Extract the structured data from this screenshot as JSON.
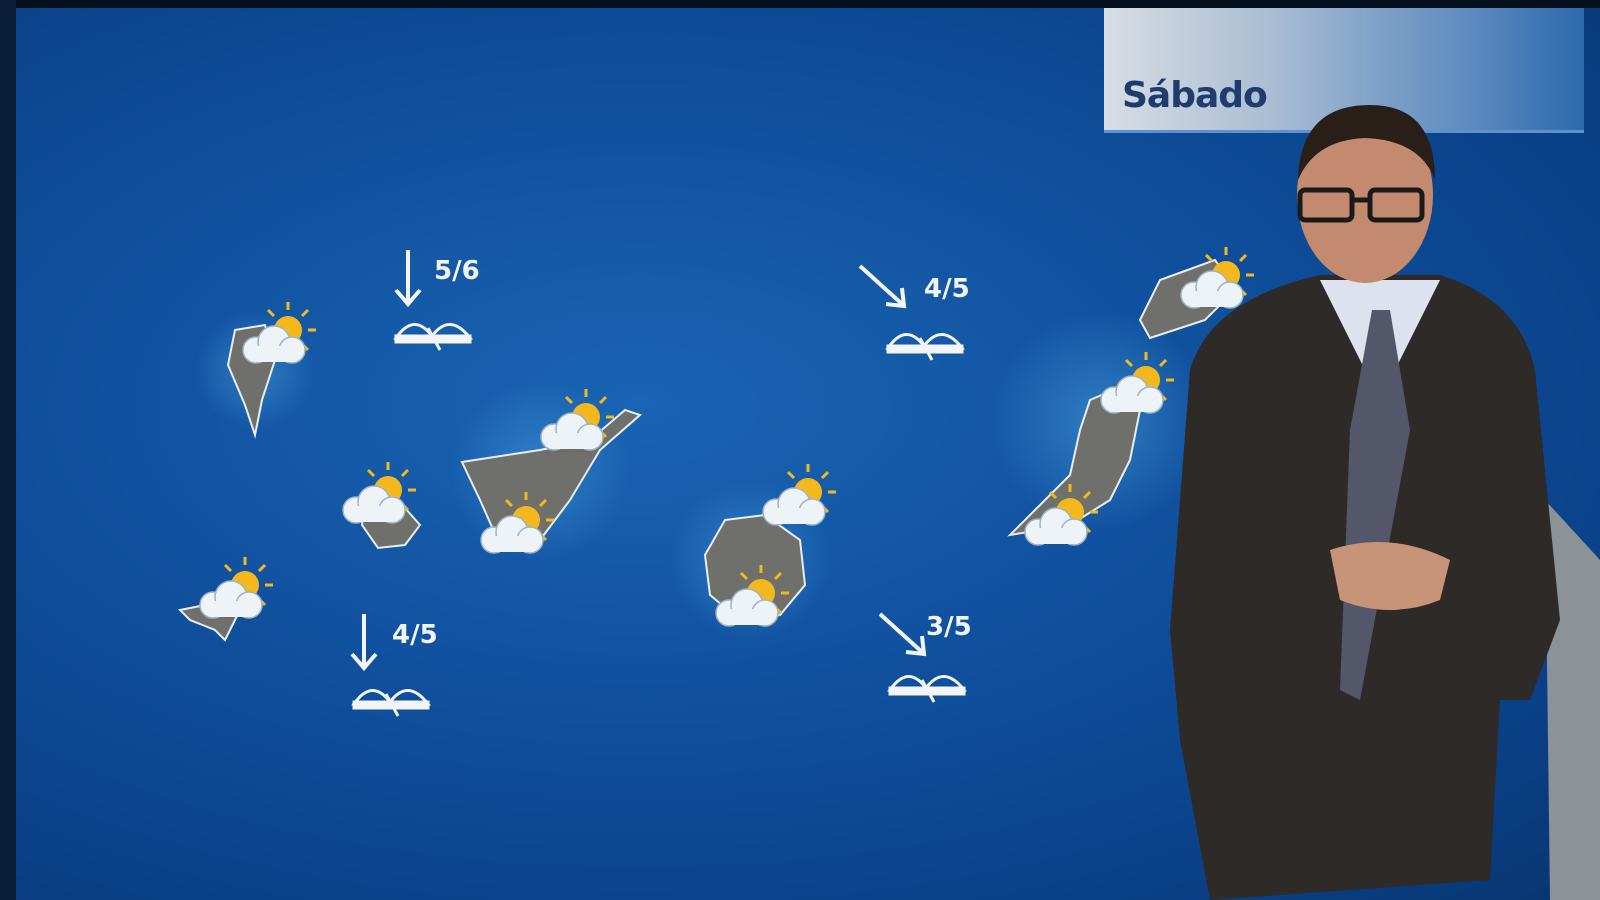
{
  "header": {
    "day_label": "Sábado"
  },
  "wind_markers": [
    {
      "direction": "south",
      "sea_state": "5/6"
    },
    {
      "direction": "south-east",
      "sea_state": "4/5"
    },
    {
      "direction": "south",
      "sea_state": "4/5"
    },
    {
      "direction": "south-east",
      "sea_state": "3/5"
    }
  ],
  "weather_icon": "sun-behind-cloud-icon",
  "sea_icon": "waves-icon",
  "colors": {
    "sea": "#0f4f9c",
    "label_text": "#1e3d6e",
    "sun": "#f5b81c"
  }
}
